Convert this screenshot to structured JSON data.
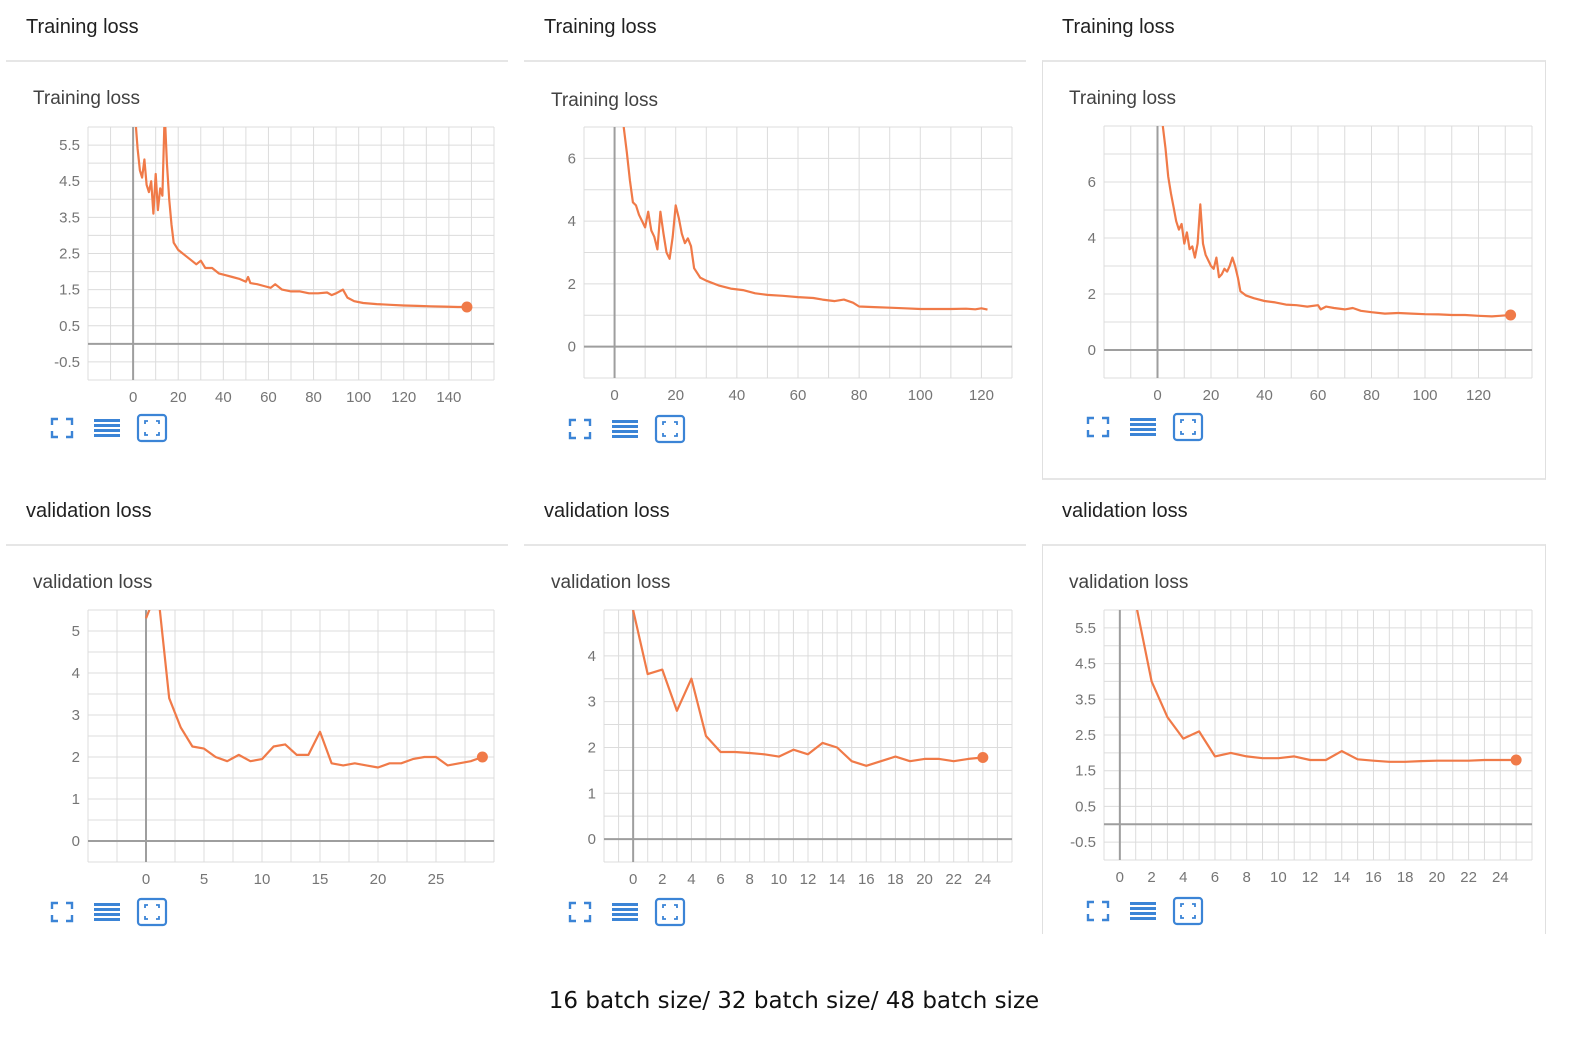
{
  "footer": {
    "caption": "16 batch size/ 32 batch size/ 48 batch size"
  },
  "colors": {
    "line": "#f07a48",
    "grid": "#dcdcdc",
    "axis": "#9e9e9e",
    "tick_text": "#757575",
    "icon": "#3b84d6"
  },
  "icons": [
    "fit-domain-icon",
    "toggle-log-scale-icon",
    "reset-zoom-icon"
  ],
  "chart_data": [
    {
      "type": "line",
      "card_title": "Training loss",
      "title": "Training loss",
      "xlim": [
        -20,
        160
      ],
      "ylim": [
        -1,
        6
      ],
      "xticks": [
        0,
        20,
        40,
        60,
        80,
        100,
        120,
        140
      ],
      "yticks": [
        5.5,
        4.5,
        3.5,
        2.5,
        1.5,
        0.5,
        -0.5
      ],
      "series": [
        {
          "end_marker": true,
          "points": [
            [
              1,
              6.2
            ],
            [
              2,
              5.4
            ],
            [
              3,
              4.8
            ],
            [
              4,
              4.6
            ],
            [
              5,
              5.1
            ],
            [
              6,
              4.4
            ],
            [
              7,
              4.2
            ],
            [
              8,
              4.5
            ],
            [
              9,
              3.6
            ],
            [
              10,
              4.7
            ],
            [
              11,
              3.7
            ],
            [
              12,
              4.3
            ],
            [
              13,
              4.1
            ],
            [
              14,
              6.4
            ],
            [
              15,
              5.0
            ],
            [
              16,
              4.0
            ],
            [
              17,
              3.3
            ],
            [
              18,
              2.8
            ],
            [
              20,
              2.6
            ],
            [
              23,
              2.45
            ],
            [
              26,
              2.3
            ],
            [
              28,
              2.2
            ],
            [
              30,
              2.3
            ],
            [
              32,
              2.1
            ],
            [
              35,
              2.1
            ],
            [
              38,
              1.95
            ],
            [
              41,
              1.9
            ],
            [
              44,
              1.85
            ],
            [
              47,
              1.8
            ],
            [
              50,
              1.72
            ],
            [
              51,
              1.85
            ],
            [
              52,
              1.68
            ],
            [
              55,
              1.65
            ],
            [
              58,
              1.6
            ],
            [
              61,
              1.55
            ],
            [
              63,
              1.65
            ],
            [
              66,
              1.5
            ],
            [
              70,
              1.45
            ],
            [
              74,
              1.45
            ],
            [
              78,
              1.4
            ],
            [
              82,
              1.4
            ],
            [
              86,
              1.42
            ],
            [
              88,
              1.35
            ],
            [
              90,
              1.4
            ],
            [
              93,
              1.5
            ],
            [
              95,
              1.28
            ],
            [
              98,
              1.18
            ],
            [
              102,
              1.13
            ],
            [
              108,
              1.1
            ],
            [
              114,
              1.08
            ],
            [
              120,
              1.06
            ],
            [
              126,
              1.05
            ],
            [
              132,
              1.04
            ],
            [
              138,
              1.03
            ],
            [
              144,
              1.02
            ],
            [
              148,
              1.02
            ]
          ]
        }
      ]
    },
    {
      "type": "line",
      "card_title": "Training loss",
      "title": "Training loss",
      "xlim": [
        -10,
        130
      ],
      "ylim": [
        -1,
        7
      ],
      "xticks": [
        0,
        20,
        40,
        60,
        80,
        100,
        120
      ],
      "yticks": [
        6,
        4,
        2,
        0
      ],
      "series": [
        {
          "end_marker": false,
          "points": [
            [
              3,
              7.0
            ],
            [
              4,
              6.2
            ],
            [
              5,
              5.3
            ],
            [
              6,
              4.6
            ],
            [
              7,
              4.5
            ],
            [
              8,
              4.2
            ],
            [
              9,
              4.0
            ],
            [
              10,
              3.8
            ],
            [
              11,
              4.3
            ],
            [
              12,
              3.7
            ],
            [
              13,
              3.5
            ],
            [
              14,
              3.1
            ],
            [
              15,
              4.3
            ],
            [
              16,
              3.6
            ],
            [
              17,
              3.0
            ],
            [
              18,
              2.8
            ],
            [
              19,
              3.5
            ],
            [
              20,
              4.5
            ],
            [
              21,
              4.1
            ],
            [
              22,
              3.6
            ],
            [
              23,
              3.3
            ],
            [
              24,
              3.45
            ],
            [
              25,
              3.2
            ],
            [
              26,
              2.5
            ],
            [
              28,
              2.2
            ],
            [
              30,
              2.1
            ],
            [
              34,
              1.95
            ],
            [
              38,
              1.85
            ],
            [
              42,
              1.8
            ],
            [
              46,
              1.7
            ],
            [
              50,
              1.65
            ],
            [
              55,
              1.62
            ],
            [
              60,
              1.58
            ],
            [
              65,
              1.55
            ],
            [
              68,
              1.5
            ],
            [
              72,
              1.45
            ],
            [
              75,
              1.5
            ],
            [
              78,
              1.4
            ],
            [
              80,
              1.28
            ],
            [
              85,
              1.26
            ],
            [
              90,
              1.24
            ],
            [
              95,
              1.22
            ],
            [
              100,
              1.2
            ],
            [
              105,
              1.2
            ],
            [
              110,
              1.2
            ],
            [
              115,
              1.21
            ],
            [
              118,
              1.19
            ],
            [
              120,
              1.22
            ],
            [
              122,
              1.18
            ]
          ]
        }
      ]
    },
    {
      "type": "line",
      "card_title": "Training loss",
      "title": "Training loss",
      "xlim": [
        -20,
        140
      ],
      "ylim": [
        -1,
        8
      ],
      "xticks": [
        0,
        20,
        40,
        60,
        80,
        100,
        120
      ],
      "yticks": [
        6,
        4,
        2,
        0
      ],
      "series": [
        {
          "end_marker": true,
          "points": [
            [
              2,
              8.0
            ],
            [
              3,
              7.2
            ],
            [
              4,
              6.2
            ],
            [
              5,
              5.6
            ],
            [
              6,
              5.1
            ],
            [
              7,
              4.6
            ],
            [
              8,
              4.3
            ],
            [
              9,
              4.5
            ],
            [
              10,
              3.8
            ],
            [
              11,
              4.2
            ],
            [
              12,
              3.6
            ],
            [
              13,
              3.7
            ],
            [
              14,
              3.3
            ],
            [
              15,
              3.8
            ],
            [
              16,
              5.2
            ],
            [
              17,
              3.8
            ],
            [
              18,
              3.4
            ],
            [
              19,
              3.2
            ],
            [
              20,
              3.0
            ],
            [
              21,
              2.9
            ],
            [
              22,
              3.3
            ],
            [
              23,
              2.6
            ],
            [
              24,
              2.7
            ],
            [
              25,
              2.9
            ],
            [
              26,
              2.8
            ],
            [
              27,
              3.0
            ],
            [
              28,
              3.3
            ],
            [
              29,
              3.0
            ],
            [
              30,
              2.6
            ],
            [
              31,
              2.1
            ],
            [
              33,
              1.95
            ],
            [
              36,
              1.85
            ],
            [
              40,
              1.75
            ],
            [
              44,
              1.7
            ],
            [
              48,
              1.62
            ],
            [
              52,
              1.6
            ],
            [
              56,
              1.55
            ],
            [
              60,
              1.6
            ],
            [
              61,
              1.45
            ],
            [
              63,
              1.55
            ],
            [
              66,
              1.5
            ],
            [
              70,
              1.45
            ],
            [
              73,
              1.5
            ],
            [
              76,
              1.4
            ],
            [
              80,
              1.35
            ],
            [
              85,
              1.3
            ],
            [
              90,
              1.32
            ],
            [
              95,
              1.3
            ],
            [
              100,
              1.28
            ],
            [
              105,
              1.27
            ],
            [
              110,
              1.25
            ],
            [
              115,
              1.25
            ],
            [
              120,
              1.22
            ],
            [
              125,
              1.2
            ],
            [
              128,
              1.22
            ],
            [
              132,
              1.25
            ]
          ]
        }
      ]
    },
    {
      "type": "line",
      "card_title": "validation loss",
      "title": "validation loss",
      "xlim": [
        -5,
        30
      ],
      "ylim": [
        -0.5,
        5.5
      ],
      "xticks": [
        0,
        5,
        10,
        15,
        20,
        25
      ],
      "yticks": [
        5,
        4,
        3,
        2,
        1,
        0
      ],
      "series": [
        {
          "end_marker": true,
          "points": [
            [
              0,
              5.3
            ],
            [
              1,
              6.0
            ],
            [
              2,
              3.4
            ],
            [
              3,
              2.7
            ],
            [
              4,
              2.25
            ],
            [
              5,
              2.2
            ],
            [
              6,
              2.0
            ],
            [
              7,
              1.9
            ],
            [
              8,
              2.05
            ],
            [
              9,
              1.9
            ],
            [
              10,
              1.95
            ],
            [
              11,
              2.25
            ],
            [
              12,
              2.3
            ],
            [
              13,
              2.05
            ],
            [
              14,
              2.05
            ],
            [
              15,
              2.6
            ],
            [
              16,
              1.85
            ],
            [
              17,
              1.8
            ],
            [
              18,
              1.85
            ],
            [
              19,
              1.8
            ],
            [
              20,
              1.75
            ],
            [
              21,
              1.85
            ],
            [
              22,
              1.85
            ],
            [
              23,
              1.95
            ],
            [
              24,
              2.0
            ],
            [
              25,
              2.0
            ],
            [
              26,
              1.8
            ],
            [
              27,
              1.85
            ],
            [
              28,
              1.9
            ],
            [
              29,
              2.0
            ]
          ]
        }
      ]
    },
    {
      "type": "line",
      "card_title": "validation loss",
      "title": "validation loss",
      "xlim": [
        -2,
        26
      ],
      "ylim": [
        -0.5,
        5
      ],
      "xticks": [
        0,
        2,
        4,
        6,
        8,
        10,
        12,
        14,
        16,
        18,
        20,
        22,
        24
      ],
      "yticks": [
        4,
        3,
        2,
        1,
        0
      ],
      "series": [
        {
          "end_marker": true,
          "points": [
            [
              0,
              5.0
            ],
            [
              1,
              3.6
            ],
            [
              2,
              3.7
            ],
            [
              3,
              2.8
            ],
            [
              4,
              3.5
            ],
            [
              5,
              2.25
            ],
            [
              6,
              1.9
            ],
            [
              7,
              1.9
            ],
            [
              8,
              1.88
            ],
            [
              9,
              1.85
            ],
            [
              10,
              1.8
            ],
            [
              11,
              1.95
            ],
            [
              12,
              1.85
            ],
            [
              13,
              2.1
            ],
            [
              14,
              2.0
            ],
            [
              15,
              1.7
            ],
            [
              16,
              1.6
            ],
            [
              17,
              1.7
            ],
            [
              18,
              1.8
            ],
            [
              19,
              1.7
            ],
            [
              20,
              1.75
            ],
            [
              21,
              1.75
            ],
            [
              22,
              1.7
            ],
            [
              23,
              1.75
            ],
            [
              24,
              1.78
            ]
          ]
        }
      ]
    },
    {
      "type": "line",
      "card_title": "validation loss",
      "title": "validation loss",
      "xlim": [
        -1,
        26
      ],
      "ylim": [
        -1,
        6
      ],
      "xticks": [
        0,
        2,
        4,
        6,
        8,
        10,
        12,
        14,
        16,
        18,
        20,
        22,
        24
      ],
      "yticks": [
        5.5,
        4.5,
        3.5,
        2.5,
        1.5,
        0.5,
        -0.5
      ],
      "series": [
        {
          "end_marker": true,
          "points": [
            [
              1,
              6.2
            ],
            [
              2,
              4.0
            ],
            [
              3,
              3.0
            ],
            [
              4,
              2.4
            ],
            [
              5,
              2.6
            ],
            [
              6,
              1.9
            ],
            [
              7,
              2.0
            ],
            [
              8,
              1.9
            ],
            [
              9,
              1.85
            ],
            [
              10,
              1.85
            ],
            [
              11,
              1.9
            ],
            [
              12,
              1.8
            ],
            [
              13,
              1.8
            ],
            [
              14,
              2.05
            ],
            [
              15,
              1.82
            ],
            [
              16,
              1.78
            ],
            [
              17,
              1.75
            ],
            [
              18,
              1.75
            ],
            [
              19,
              1.77
            ],
            [
              20,
              1.78
            ],
            [
              21,
              1.78
            ],
            [
              22,
              1.78
            ],
            [
              23,
              1.8
            ],
            [
              24,
              1.8
            ],
            [
              25,
              1.8
            ]
          ]
        }
      ]
    }
  ]
}
